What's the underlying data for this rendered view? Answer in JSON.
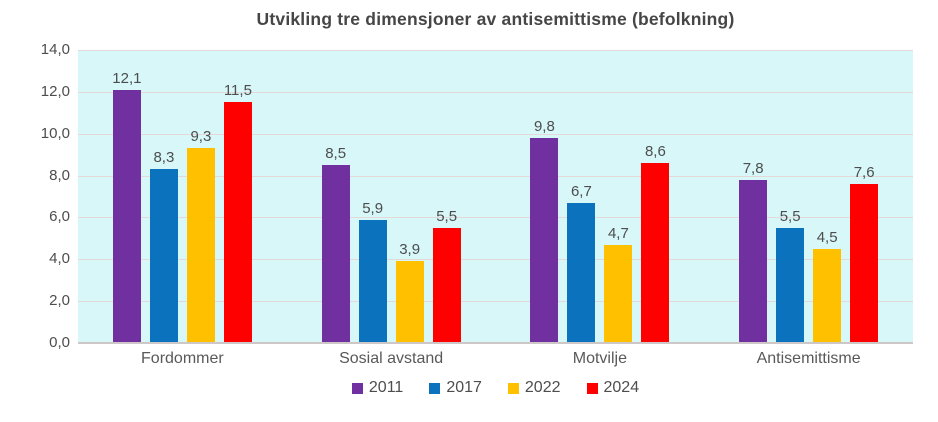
{
  "chart_data": {
    "type": "bar",
    "title": "Utvikling tre dimensjoner av antisemittisme (befolkning)",
    "categories": [
      "Fordommer",
      "Sosial avstand",
      "Motvilje",
      "Antisemittisme"
    ],
    "series": [
      {
        "name": "2011",
        "color": "#7030A0",
        "values": [
          12.1,
          8.5,
          9.8,
          7.8
        ],
        "labels": [
          "12,1",
          "8,5",
          "9,8",
          "7,8"
        ]
      },
      {
        "name": "2017",
        "color": "#0B72BE",
        "values": [
          8.3,
          5.9,
          6.7,
          5.5
        ],
        "labels": [
          "8,3",
          "5,9",
          "6,7",
          "5,5"
        ]
      },
      {
        "name": "2022",
        "color": "#FFC000",
        "values": [
          9.3,
          3.9,
          4.7,
          4.5
        ],
        "labels": [
          "9,3",
          "3,9",
          "4,7",
          "4,5"
        ]
      },
      {
        "name": "2024",
        "color": "#FF0000",
        "values": [
          11.5,
          5.5,
          8.6,
          7.6
        ],
        "labels": [
          "11,5",
          "5,5",
          "8,6",
          "7,6"
        ]
      }
    ],
    "ylim": [
      0,
      14
    ],
    "ytick_step": 2,
    "ytick_labels": [
      "0,0",
      "2,0",
      "4,0",
      "6,0",
      "8,0",
      "10,0",
      "12,0",
      "14,0"
    ],
    "grid": true,
    "legend_position": "bottom",
    "plot_bg": "#D7F7F9",
    "grid_color": "#E4D8D8",
    "axis_line_color": "#CDC7C7",
    "text_color": "#4D4D4D",
    "title_color": "#464646"
  }
}
